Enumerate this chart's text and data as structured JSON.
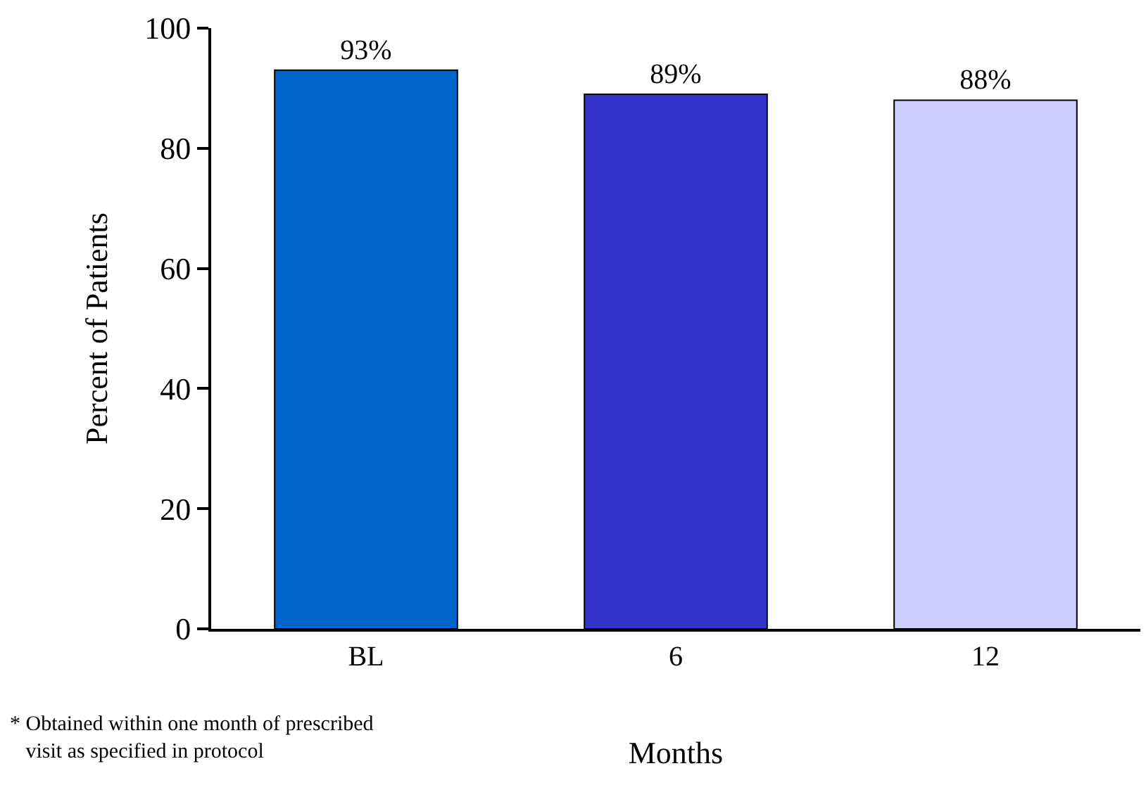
{
  "chart_data": {
    "type": "bar",
    "xlabel": "Months",
    "ylabel": "Percent of Patients",
    "categories": [
      "BL",
      "6",
      "12"
    ],
    "values": [
      93,
      89,
      88
    ],
    "colors": [
      "#0066cc",
      "#3333cc",
      "#ccccff"
    ],
    "value_labels": [
      "93%",
      "89%",
      "88%"
    ],
    "ylim": [
      0,
      100
    ],
    "yticks": [
      0,
      20,
      40,
      60,
      80,
      100
    ],
    "grid": false,
    "annotations": [
      "* Obtained within one month of prescribed\n   visit as specified in protocol"
    ]
  }
}
